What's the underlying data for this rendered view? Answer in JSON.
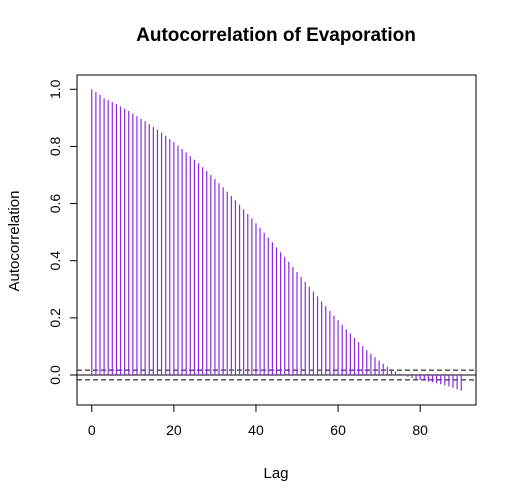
{
  "chart_data": {
    "type": "bar",
    "title": "Autocorrelation of Evaporation",
    "xlabel": "Lag",
    "ylabel": "Autocorrelation",
    "xlim": [
      -3.6,
      93.6
    ],
    "ylim": [
      -0.105,
      1.05
    ],
    "x_ticks": [
      "0",
      "20",
      "40",
      "60",
      "80"
    ],
    "y_ticks": [
      "0.0",
      "0.2",
      "0.4",
      "0.6",
      "0.8",
      "1.0"
    ],
    "confidence_bound": 0.017,
    "grid": false,
    "legend": "none",
    "bar_color": "#8a2be2",
    "x": [
      0,
      1,
      2,
      3,
      4,
      5,
      6,
      7,
      8,
      9,
      10,
      11,
      12,
      13,
      14,
      15,
      16,
      17,
      18,
      19,
      20,
      21,
      22,
      23,
      24,
      25,
      26,
      27,
      28,
      29,
      30,
      31,
      32,
      33,
      34,
      35,
      36,
      37,
      38,
      39,
      40,
      41,
      42,
      43,
      44,
      45,
      46,
      47,
      48,
      49,
      50,
      51,
      52,
      53,
      54,
      55,
      56,
      57,
      58,
      59,
      60,
      61,
      62,
      63,
      64,
      65,
      66,
      67,
      68,
      69,
      70,
      71,
      72,
      73,
      74,
      75,
      76,
      77,
      78,
      79,
      80,
      81,
      82,
      83,
      84,
      85,
      86,
      87,
      88,
      89,
      90
    ],
    "values": [
      1.0,
      0.99,
      0.98,
      0.968,
      0.962,
      0.955,
      0.948,
      0.94,
      0.932,
      0.924,
      0.915,
      0.906,
      0.897,
      0.888,
      0.878,
      0.868,
      0.858,
      0.848,
      0.837,
      0.826,
      0.815,
      0.803,
      0.791,
      0.779,
      0.766,
      0.754,
      0.741,
      0.727,
      0.714,
      0.7,
      0.686,
      0.671,
      0.657,
      0.642,
      0.627,
      0.611,
      0.596,
      0.58,
      0.564,
      0.548,
      0.531,
      0.515,
      0.498,
      0.481,
      0.464,
      0.447,
      0.43,
      0.413,
      0.396,
      0.378,
      0.361,
      0.344,
      0.326,
      0.309,
      0.292,
      0.275,
      0.258,
      0.241,
      0.224,
      0.208,
      0.192,
      0.176,
      0.16,
      0.145,
      0.13,
      0.115,
      0.101,
      0.087,
      0.074,
      0.062,
      0.05,
      0.039,
      0.029,
      0.02,
      0.012,
      0.005,
      -0.001,
      -0.006,
      -0.01,
      -0.014,
      -0.017,
      -0.02,
      -0.023,
      -0.026,
      -0.029,
      -0.032,
      -0.036,
      -0.04,
      -0.045,
      -0.05,
      -0.055
    ]
  }
}
